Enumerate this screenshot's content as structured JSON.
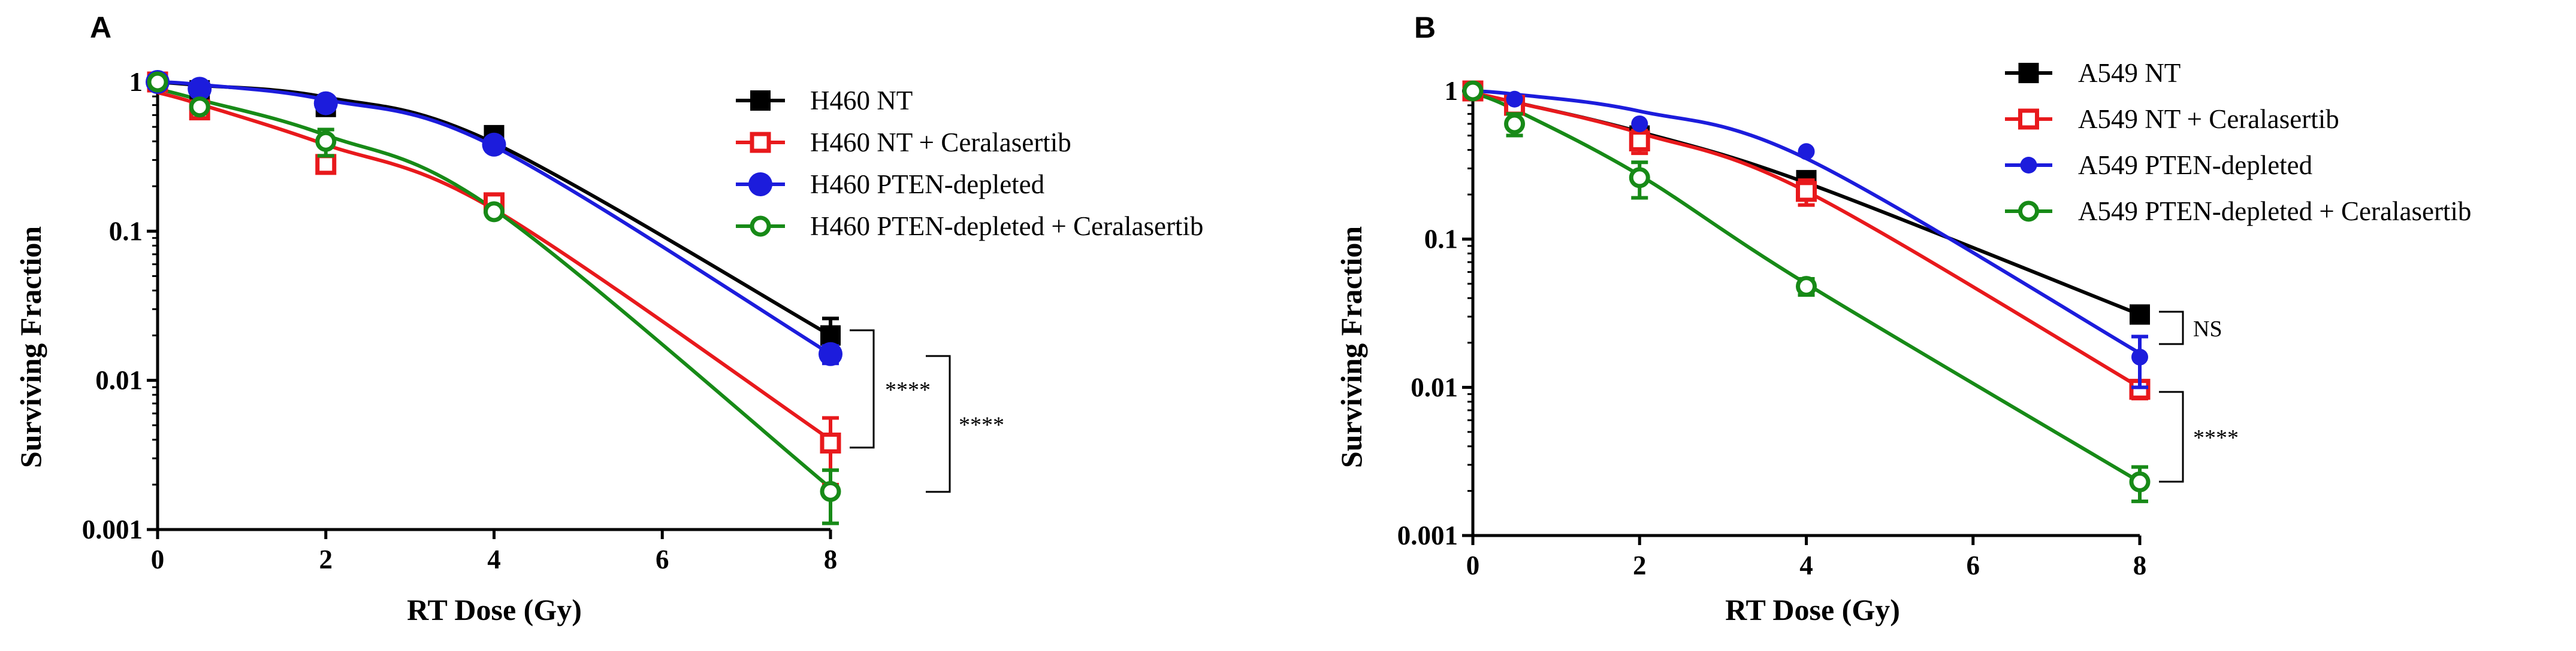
{
  "colors": {
    "black": "#000000",
    "red": "#e8191c",
    "blue": "#1c1cdc",
    "green": "#178a17"
  },
  "chart_data": [
    {
      "panel": "A",
      "type": "scatter",
      "xlabel": "RT Dose (Gy)",
      "ylabel": "Surviving Fraction",
      "xlim": [
        0,
        8
      ],
      "ylim": [
        0.001,
        1
      ],
      "yscale": "log",
      "xticks": [
        "0",
        "2",
        "4",
        "6",
        "8"
      ],
      "yticks": [
        "1",
        "0.1",
        "0.01",
        "0.001"
      ],
      "legend_position": "top-right",
      "x": [
        0,
        0.5,
        2,
        4,
        8
      ],
      "series": [
        {
          "name": "H460 NT",
          "color_key": "black",
          "marker": "filled-square",
          "values": [
            1.0,
            0.88,
            0.68,
            0.44,
            0.02
          ],
          "errors": [
            0,
            0,
            0,
            0,
            0.006
          ],
          "fit": [
            1.0,
            0.95,
            0.79,
            0.39,
            0.02
          ]
        },
        {
          "name": "H460 NT + Ceralasertib",
          "color_key": "red",
          "marker": "open-square",
          "values": [
            1.0,
            0.65,
            0.28,
            0.155,
            0.0038
          ],
          "errors": [
            0,
            0,
            0,
            0,
            0.0018
          ],
          "fit": [
            0.85,
            0.71,
            0.38,
            0.14,
            0.004
          ]
        },
        {
          "name": "H460 PTEN-depleted",
          "color_key": "blue",
          "marker": "filled-circle",
          "values": [
            1.0,
            0.9,
            0.72,
            0.38,
            0.015
          ],
          "errors": [
            0,
            0,
            0,
            0,
            0.002
          ],
          "fit": [
            1.0,
            0.96,
            0.76,
            0.37,
            0.015
          ]
        },
        {
          "name": "H460 PTEN-depleted + Ceralasertib",
          "color_key": "green",
          "marker": "open-circle",
          "values": [
            1.0,
            0.68,
            0.4,
            0.135,
            0.0018
          ],
          "errors": [
            0,
            0,
            0.08,
            0,
            0.0007
          ],
          "fit": [
            0.9,
            0.76,
            0.44,
            0.14,
            0.0019
          ]
        }
      ],
      "significance": [
        {
          "label": "****",
          "between": [
            "H460 NT",
            "H460 NT + Ceralasertib"
          ]
        },
        {
          "label": "****",
          "between": [
            "H460 PTEN-depleted",
            "H460 PTEN-depleted + Ceralasertib"
          ]
        }
      ]
    },
    {
      "panel": "B",
      "type": "scatter",
      "xlabel": "RT Dose (Gy)",
      "ylabel": "Surviving Fraction",
      "xlim": [
        0,
        8
      ],
      "ylim": [
        0.001,
        1
      ],
      "yscale": "log",
      "xticks": [
        "0",
        "2",
        "4",
        "6",
        "8"
      ],
      "yticks": [
        "1",
        "0.1",
        "0.01",
        "0.001"
      ],
      "legend_position": "top-right",
      "x": [
        0,
        0.5,
        2,
        4,
        8
      ],
      "series": [
        {
          "name": "A549 NT",
          "color_key": "black",
          "marker": "filled-square",
          "values": [
            1.0,
            0.8,
            0.5,
            0.25,
            0.031
          ],
          "errors": [
            0,
            0,
            0,
            0,
            0
          ],
          "fit": [
            0.97,
            0.84,
            0.53,
            0.24,
            0.031
          ]
        },
        {
          "name": "A549 NT + Ceralasertib",
          "color_key": "red",
          "marker": "open-square",
          "values": [
            1.0,
            0.8,
            0.46,
            0.21,
            0.0097
          ],
          "errors": [
            0,
            0,
            0.08,
            0.04,
            0.0013
          ],
          "fit": [
            0.97,
            0.84,
            0.52,
            0.21,
            0.01
          ]
        },
        {
          "name": "A549 PTEN-depleted",
          "color_key": "blue",
          "marker": "filled-dot",
          "values": [
            1.0,
            0.88,
            0.6,
            0.39,
            0.016
          ],
          "errors": [
            0,
            0,
            0,
            0,
            0.006
          ],
          "fit": [
            1.0,
            0.95,
            0.73,
            0.35,
            0.017
          ]
        },
        {
          "name": "A549 PTEN-depleted + Ceralasertib",
          "color_key": "green",
          "marker": "open-circle",
          "values": [
            1.0,
            0.6,
            0.26,
            0.048,
            0.0023
          ],
          "errors": [
            0,
            0.1,
            0.07,
            0.006,
            0.0006
          ],
          "fit": [
            0.97,
            0.75,
            0.27,
            0.05,
            0.0023
          ]
        }
      ],
      "significance": [
        {
          "label": "NS",
          "between": [
            "A549 NT",
            "A549 PTEN-depleted"
          ]
        },
        {
          "label": "****",
          "between": [
            "A549 NT + Ceralasertib",
            "A549 PTEN-depleted + Ceralasertib"
          ]
        }
      ]
    }
  ]
}
